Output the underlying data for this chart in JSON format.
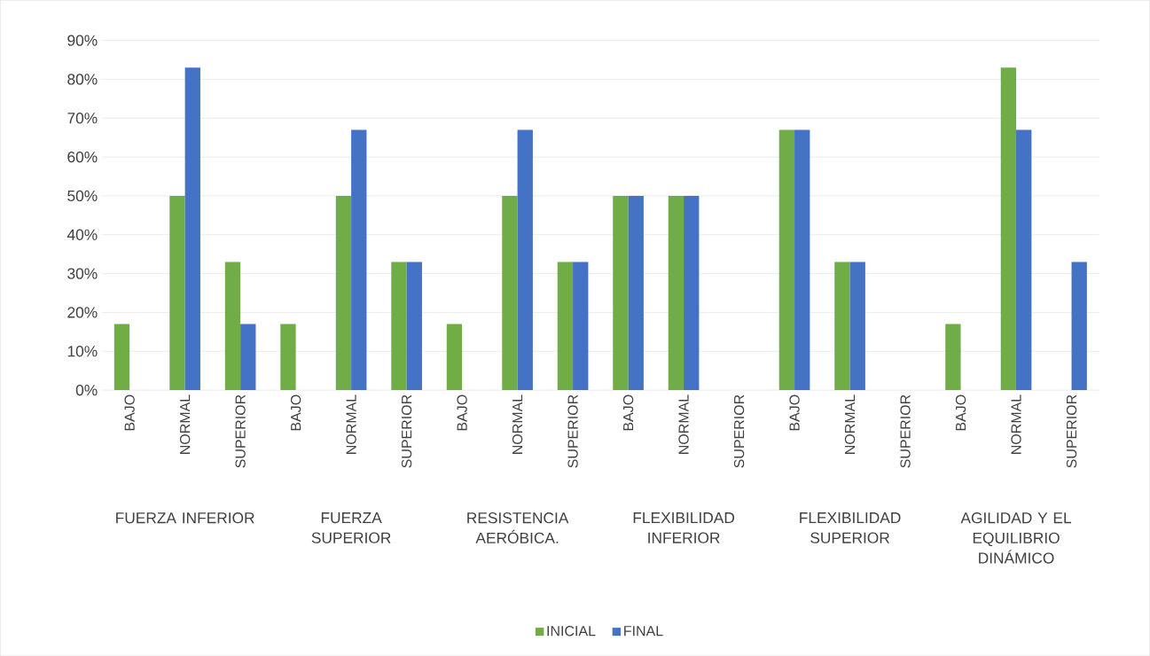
{
  "chart_data": {
    "type": "bar",
    "categories": [
      "BAJO",
      "NORMAL",
      "SUPERIOR",
      "BAJO",
      "NORMAL",
      "SUPERIOR",
      "BAJO",
      "NORMAL",
      "SUPERIOR",
      "BAJO",
      "NORMAL",
      "SUPERIOR",
      "BAJO",
      "NORMAL",
      "SUPERIOR",
      "BAJO",
      "NORMAL",
      "SUPERIOR"
    ],
    "annotations": [
      "FUERZA INFERIOR",
      "FUERZA SUPERIOR",
      "RESISTENCIA AERÓBICA.",
      "FLEXIBILIDAD INFERIOR",
      "FLEXIBILIDAD SUPERIOR",
      "AGILIDAD Y EL EQUILIBRIO DINÁMICO"
    ],
    "series": [
      {
        "name": "INICIAL",
        "color": "#70ad47",
        "values": [
          17,
          50,
          33,
          17,
          50,
          33,
          17,
          50,
          33,
          50,
          50,
          0,
          67,
          33,
          0,
          17,
          83,
          0
        ]
      },
      {
        "name": "FINAL",
        "color": "#4472c4",
        "values": [
          0,
          83,
          17,
          0,
          67,
          33,
          0,
          67,
          33,
          50,
          50,
          0,
          67,
          33,
          0,
          0,
          67,
          33
        ]
      }
    ],
    "ylim": [
      0,
      90
    ],
    "yticks": [
      {
        "value": 0,
        "label": "0%"
      },
      {
        "value": 10,
        "label": "10%"
      },
      {
        "value": 20,
        "label": "20%"
      },
      {
        "value": 30,
        "label": "30%"
      },
      {
        "value": 40,
        "label": "40%"
      },
      {
        "value": 50,
        "label": "50%"
      },
      {
        "value": 60,
        "label": "60%"
      },
      {
        "value": 70,
        "label": "70%"
      },
      {
        "value": 80,
        "label": "80%"
      },
      {
        "value": 90,
        "label": "90%"
      }
    ],
    "grid": "y",
    "legend": "bottom"
  }
}
